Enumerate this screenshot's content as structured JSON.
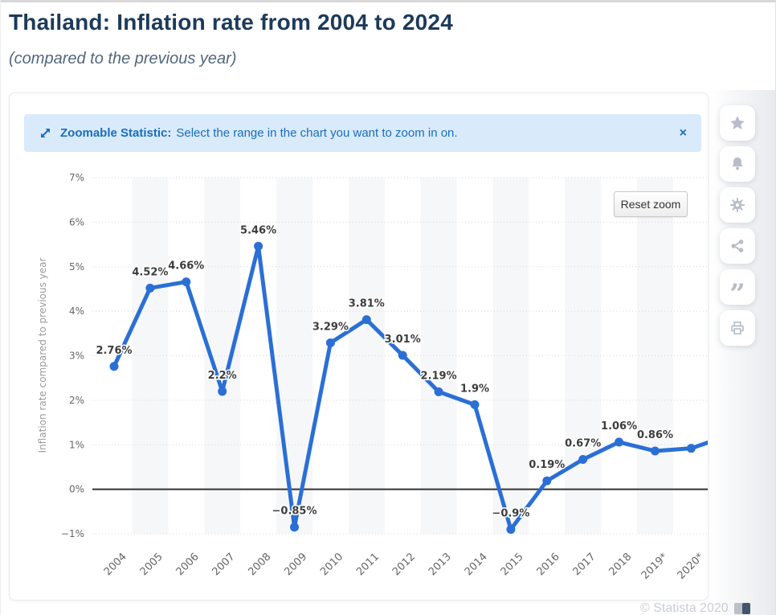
{
  "page": {
    "title": "Thailand: Inflation rate from 2004 to 2024",
    "subtitle": "(compared to the previous year)"
  },
  "banner": {
    "icon": "zoom-diagonal-arrows-icon",
    "bold_label": "Zoomable Statistic:",
    "message": "Select the range in the chart you want to zoom in on.",
    "close_label": "×"
  },
  "toolbar": {
    "reset_zoom_label": "Reset zoom"
  },
  "sidebar": {
    "buttons": [
      {
        "name": "favorite-button",
        "icon": "star-icon"
      },
      {
        "name": "alerts-button",
        "icon": "bell-icon"
      },
      {
        "name": "settings-button",
        "icon": "gear-icon"
      },
      {
        "name": "share-button",
        "icon": "share-icon"
      },
      {
        "name": "cite-button",
        "icon": "quote-icon"
      },
      {
        "name": "print-button",
        "icon": "printer-icon"
      }
    ]
  },
  "footer": {
    "copyright": "© Statista 2020",
    "icon": "flag-icon"
  },
  "colors": {
    "line": "#2b6fd6",
    "banner_bg": "#d9eafb",
    "banner_text": "#1a6ebc",
    "title": "#1d3a5a",
    "grid": "#d9d9d9",
    "band": "#f6f7f8",
    "zero_line": "#333333",
    "axis_text": "#666666",
    "label_text": "#3d3d3d",
    "axis_title_text": "#9a9a9a",
    "icon_gray": "#b6bdc9"
  },
  "chart_data": {
    "type": "line",
    "title": "Thailand: Inflation rate from 2004 to 2024",
    "subtitle": "(compared to the previous year)",
    "ylabel": "Inflation rate compared to previous year",
    "xlabel": "",
    "categories": [
      "2004",
      "2005",
      "2006",
      "2007",
      "2008",
      "2009",
      "2010",
      "2011",
      "2012",
      "2013",
      "2014",
      "2015",
      "2016",
      "2017",
      "2018",
      "2019*",
      "2020*"
    ],
    "values": [
      2.76,
      4.52,
      4.66,
      2.2,
      5.46,
      -0.85,
      3.29,
      3.81,
      3.01,
      2.19,
      1.9,
      -0.9,
      0.19,
      0.67,
      1.06,
      0.86,
      0.92
    ],
    "point_labels": [
      "2.76%",
      "4.52%",
      "4.66%",
      "2.2%",
      "5.46%",
      "−0.85%",
      "3.29%",
      "3.81%",
      "3.01%",
      "2.19%",
      "1.9%",
      "−0.9%",
      "0.19%",
      "0.67%",
      "1.06%",
      "0.86%",
      ""
    ],
    "y_ticks": [
      {
        "label": "7%",
        "value": 7
      },
      {
        "label": "6%",
        "value": 6
      },
      {
        "label": "5%",
        "value": 5
      },
      {
        "label": "4%",
        "value": 4
      },
      {
        "label": "3%",
        "value": 3
      },
      {
        "label": "2%",
        "value": 2
      },
      {
        "label": "1%",
        "value": 1
      },
      {
        "label": "0%",
        "value": 0
      },
      {
        "label": "−1%",
        "value": -1
      }
    ],
    "ylim": [
      -1,
      7
    ],
    "grid": "dotted-horizontal",
    "zero_line": true,
    "legend": "none",
    "plot_bands": "alternating vertical year bands, shaded on odd years starting 2005",
    "continuation": {
      "note": "view is zoomed; line continues off-screen toward 2021",
      "next_value_estimate": 1.2
    }
  }
}
